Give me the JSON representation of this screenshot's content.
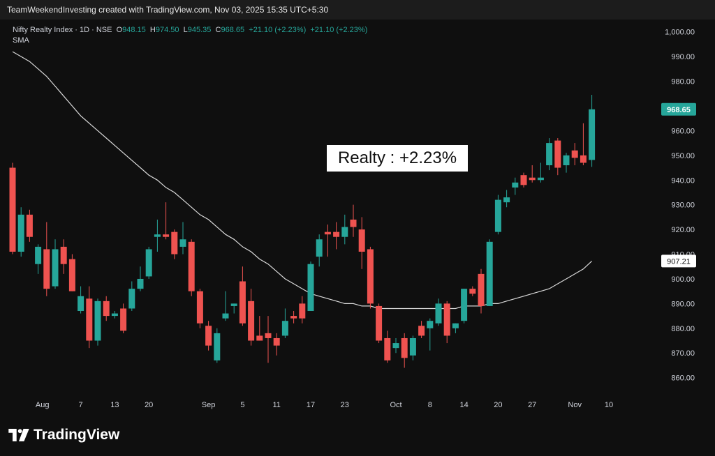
{
  "header": {
    "caption": "TeamWeekendInvesting created with TradingView.com, Nov 03, 2025 15:35 UTC+5:30"
  },
  "legend": {
    "symbol": "Nifty Realty Index · 1D · NSE",
    "o_label": "O",
    "o_value": "948.15",
    "h_label": "H",
    "h_value": "974.50",
    "l_label": "L",
    "l_value": "945.35",
    "c_label": "C",
    "c_value": "968.65",
    "change": "+21.10 (+2.23%)",
    "change2": "+21.10 (+2.23%)",
    "indicator": "SMA"
  },
  "annotation": "Realty : +2.23%",
  "footer": {
    "brand": "TradingView",
    "logo_icon": "tradingview-logo-icon"
  },
  "colors": {
    "up": "#26a69a",
    "down": "#ef5350",
    "sma": "#d9d9d9",
    "axis_text": "#d1d4dc",
    "last_price_bg": "#26a69a",
    "sma_label_bg": "#ffffff"
  },
  "chart_data": {
    "type": "candlestick",
    "title": "Nifty Realty Index · 1D · NSE",
    "y_axis": {
      "position": "right",
      "range": [
        852,
        1005
      ],
      "ticks": [
        860,
        870,
        880,
        890,
        900,
        910,
        920,
        930,
        940,
        950,
        960,
        970,
        980,
        990,
        1000
      ],
      "tick_labels": [
        "860.00",
        "870.00",
        "880.00",
        "890.00",
        "900.00",
        "910.00",
        "920.00",
        "930.00",
        "940.00",
        "950.00",
        "960.00",
        "970.00",
        "980.00",
        "990.00",
        "1,000.00"
      ]
    },
    "x_axis": {
      "labels": [
        {
          "text": "Aug",
          "index": 3.5
        },
        {
          "text": "7",
          "index": 8
        },
        {
          "text": "13",
          "index": 12
        },
        {
          "text": "20",
          "index": 16
        },
        {
          "text": "Sep",
          "index": 23
        },
        {
          "text": "5",
          "index": 27
        },
        {
          "text": "11",
          "index": 31
        },
        {
          "text": "17",
          "index": 35
        },
        {
          "text": "23",
          "index": 39
        },
        {
          "text": "Oct",
          "index": 45
        },
        {
          "text": "8",
          "index": 49
        },
        {
          "text": "14",
          "index": 53
        },
        {
          "text": "20",
          "index": 57
        },
        {
          "text": "27",
          "index": 61
        },
        {
          "text": "Nov",
          "index": 66
        },
        {
          "text": "10",
          "index": 70
        }
      ]
    },
    "grid": false,
    "candles": [
      {
        "o": 945,
        "h": 947,
        "l": 910,
        "c": 911
      },
      {
        "o": 911,
        "h": 929,
        "l": 909,
        "c": 926
      },
      {
        "o": 926,
        "h": 928,
        "l": 915,
        "c": 917
      },
      {
        "o": 906,
        "h": 914,
        "l": 902,
        "c": 913
      },
      {
        "o": 912,
        "h": 923,
        "l": 893,
        "c": 896
      },
      {
        "o": 897,
        "h": 916,
        "l": 896,
        "c": 912
      },
      {
        "o": 913,
        "h": 916,
        "l": 902,
        "c": 906
      },
      {
        "o": 908,
        "h": 910,
        "l": 895,
        "c": 895
      },
      {
        "o": 887,
        "h": 897,
        "l": 886,
        "c": 893
      },
      {
        "o": 892,
        "h": 897,
        "l": 872,
        "c": 875
      },
      {
        "o": 875,
        "h": 892,
        "l": 873,
        "c": 891
      },
      {
        "o": 891,
        "h": 893,
        "l": 883,
        "c": 885
      },
      {
        "o": 885,
        "h": 887,
        "l": 884,
        "c": 886
      },
      {
        "o": 888,
        "h": 890,
        "l": 878,
        "c": 879
      },
      {
        "o": 888,
        "h": 899,
        "l": 887,
        "c": 896
      },
      {
        "o": 896,
        "h": 905,
        "l": 895,
        "c": 900
      },
      {
        "o": 901,
        "h": 913,
        "l": 900,
        "c": 912
      },
      {
        "o": 917,
        "h": 924,
        "l": 911,
        "c": 918
      },
      {
        "o": 918,
        "h": 931,
        "l": 916,
        "c": 917
      },
      {
        "o": 919,
        "h": 920,
        "l": 908,
        "c": 910
      },
      {
        "o": 913,
        "h": 923,
        "l": 910,
        "c": 916
      },
      {
        "o": 915,
        "h": 916,
        "l": 893,
        "c": 895
      },
      {
        "o": 895,
        "h": 896,
        "l": 880,
        "c": 882
      },
      {
        "o": 881,
        "h": 883,
        "l": 871,
        "c": 873
      },
      {
        "o": 867,
        "h": 880,
        "l": 866,
        "c": 878
      },
      {
        "o": 884,
        "h": 895,
        "l": 883,
        "c": 886
      },
      {
        "o": 889,
        "h": 890,
        "l": 886,
        "c": 890
      },
      {
        "o": 899,
        "h": 905,
        "l": 881,
        "c": 882
      },
      {
        "o": 891,
        "h": 896,
        "l": 873,
        "c": 875
      },
      {
        "o": 877,
        "h": 885,
        "l": 875,
        "c": 875
      },
      {
        "o": 878,
        "h": 885,
        "l": 866,
        "c": 876
      },
      {
        "o": 876,
        "h": 878,
        "l": 869,
        "c": 873
      },
      {
        "o": 877,
        "h": 888,
        "l": 876,
        "c": 883
      },
      {
        "o": 885,
        "h": 887,
        "l": 882,
        "c": 884
      },
      {
        "o": 890,
        "h": 893,
        "l": 882,
        "c": 884
      },
      {
        "o": 887,
        "h": 907,
        "l": 887,
        "c": 906
      },
      {
        "o": 909,
        "h": 918,
        "l": 905,
        "c": 916
      },
      {
        "o": 919,
        "h": 922,
        "l": 909,
        "c": 918
      },
      {
        "o": 919,
        "h": 923,
        "l": 912,
        "c": 917
      },
      {
        "o": 917,
        "h": 926,
        "l": 914,
        "c": 921
      },
      {
        "o": 924,
        "h": 930,
        "l": 917,
        "c": 921
      },
      {
        "o": 920,
        "h": 925,
        "l": 904,
        "c": 911
      },
      {
        "o": 912,
        "h": 913,
        "l": 888,
        "c": 890
      },
      {
        "o": 889,
        "h": 890,
        "l": 874,
        "c": 875
      },
      {
        "o": 876,
        "h": 879,
        "l": 866,
        "c": 867
      },
      {
        "o": 872,
        "h": 876,
        "l": 870,
        "c": 874
      },
      {
        "o": 876,
        "h": 878,
        "l": 864,
        "c": 868
      },
      {
        "o": 869,
        "h": 877,
        "l": 867,
        "c": 876
      },
      {
        "o": 881,
        "h": 883,
        "l": 876,
        "c": 877
      },
      {
        "o": 880,
        "h": 884,
        "l": 871,
        "c": 883
      },
      {
        "o": 882,
        "h": 892,
        "l": 881,
        "c": 890
      },
      {
        "o": 890,
        "h": 891,
        "l": 874,
        "c": 877
      },
      {
        "o": 880,
        "h": 882,
        "l": 878,
        "c": 882
      },
      {
        "o": 883,
        "h": 896,
        "l": 882,
        "c": 896
      },
      {
        "o": 896,
        "h": 897,
        "l": 893,
        "c": 894
      },
      {
        "o": 902,
        "h": 904,
        "l": 886,
        "c": 889
      },
      {
        "o": 889,
        "h": 916,
        "l": 889,
        "c": 915
      },
      {
        "o": 919,
        "h": 934,
        "l": 918,
        "c": 932
      },
      {
        "o": 931,
        "h": 936,
        "l": 929,
        "c": 933
      },
      {
        "o": 937,
        "h": 941,
        "l": 934,
        "c": 939
      },
      {
        "o": 942,
        "h": 943,
        "l": 937,
        "c": 938
      },
      {
        "o": 941,
        "h": 946,
        "l": 939,
        "c": 940
      },
      {
        "o": 940,
        "h": 947,
        "l": 939,
        "c": 941
      },
      {
        "o": 946,
        "h": 957,
        "l": 944,
        "c": 955
      },
      {
        "o": 956,
        "h": 957,
        "l": 942,
        "c": 945
      },
      {
        "o": 946,
        "h": 951,
        "l": 943,
        "c": 950
      },
      {
        "o": 952,
        "h": 955,
        "l": 946,
        "c": 949
      },
      {
        "o": 950,
        "h": 963,
        "l": 946,
        "c": 947
      },
      {
        "o": 948.15,
        "h": 974.5,
        "l": 945.35,
        "c": 968.65
      }
    ],
    "series": [
      {
        "name": "SMA",
        "values": [
          992,
          990,
          988,
          985,
          982,
          978,
          974,
          970,
          966,
          963,
          960,
          957,
          954,
          951,
          948,
          945,
          942,
          940,
          937,
          935,
          932,
          929,
          926,
          924,
          921,
          918,
          916,
          913,
          911,
          908,
          906,
          903,
          900,
          898,
          896,
          894,
          893,
          892,
          891,
          890,
          890,
          889,
          889,
          888,
          888,
          888,
          888,
          888,
          888,
          888,
          888,
          888,
          888,
          889,
          889,
          889,
          890,
          890,
          891,
          892,
          893,
          894,
          895,
          896,
          898,
          900,
          902,
          904,
          907.21
        ]
      }
    ],
    "last_price_label": "968.65",
    "sma_label": "907.21"
  }
}
